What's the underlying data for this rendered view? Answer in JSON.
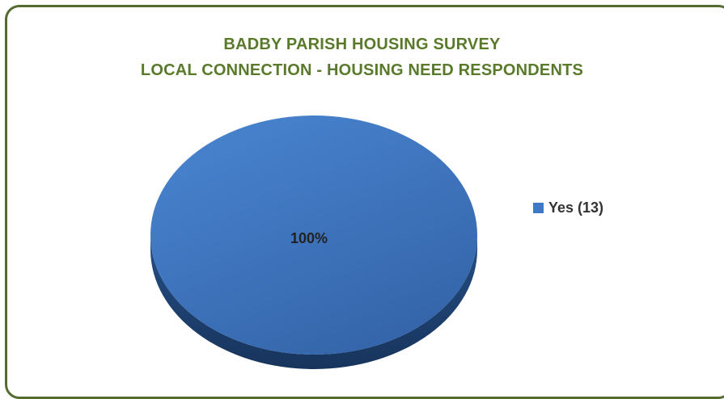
{
  "chart_data": {
    "type": "pie",
    "title_line1": "BADBY PARISH HOUSING SURVEY",
    "title_line2": "LOCAL CONNECTION - HOUSING NEED RESPONDENTS",
    "slices": [
      {
        "legend": "Yes (13)",
        "value": 13,
        "percent_label": "100%",
        "color": "#3f78c4"
      }
    ],
    "legend_position": "right",
    "style": "3d"
  }
}
